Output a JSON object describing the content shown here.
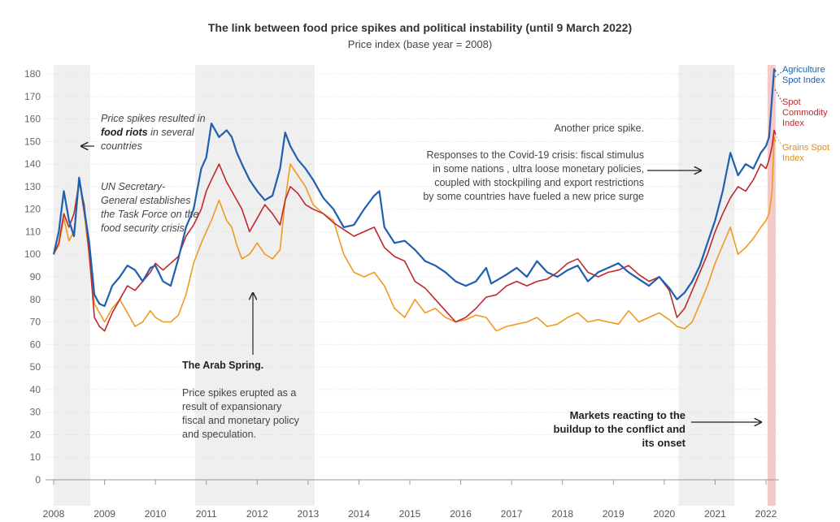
{
  "title": "The link between food price spikes and political instability (until 9 March 2022)",
  "subtitle": "Price index (base year = 2008)",
  "annotations": {
    "riots_pre": "Price spikes resulted in ",
    "riots_bold": "food riots",
    "riots_post": " in several countries",
    "un_task_force": "UN Secretary-General establishes the Task Force on the food security crisis",
    "arab_spring_title": "The Arab Spring.",
    "arab_spring_body": "Price spikes erupted as a result of expansionary fiscal and monetary policy  and speculation.",
    "another_spike": "Another price spike.",
    "covid": "Responses to the Covid-19 crisis:  fiscal stimulus in some nations , ultra loose monetary policies, coupled with stockpiling and export restrictions by some countries have fueled a new price surge",
    "conflict": "Markets reacting to the buildup to the conflict and its onset"
  },
  "colors": {
    "agriculture": "#1f5fb0",
    "commodity": "#c0282e",
    "grains": "#f09a1f",
    "shade": "#efefef",
    "conflict_shade": "#f3c9c9"
  },
  "chart_data": {
    "type": "line",
    "x_ticks": [
      "2008",
      "2009",
      "2010",
      "2011",
      "2012",
      "2013",
      "2014",
      "2015",
      "2016",
      "2017",
      "2018",
      "2019",
      "2020",
      "2021",
      "2022"
    ],
    "ylim": [
      0,
      180
    ],
    "y_ticks": [
      "0",
      "10",
      "20",
      "30",
      "40",
      "50",
      "60",
      "70",
      "80",
      "90",
      "100",
      "110",
      "120",
      "130",
      "140",
      "150",
      "160",
      "170",
      "180"
    ],
    "grid": true,
    "shaded_periods": [
      {
        "start": 2008.0,
        "end": 2008.72
      },
      {
        "start": 2010.78,
        "end": 2013.13
      },
      {
        "start": 2020.28,
        "end": 2021.38
      },
      {
        "start": 2022.03,
        "end": 2022.19,
        "kind": "conflict"
      }
    ],
    "series": [
      {
        "name": "Agriculture Spot Index",
        "color": "#1f5fb0",
        "points": [
          [
            2008.0,
            100
          ],
          [
            2008.1,
            110
          ],
          [
            2008.2,
            128
          ],
          [
            2008.3,
            115
          ],
          [
            2008.4,
            108
          ],
          [
            2008.5,
            134
          ],
          [
            2008.6,
            120
          ],
          [
            2008.7,
            105
          ],
          [
            2008.8,
            82
          ],
          [
            2008.9,
            78
          ],
          [
            2009.0,
            77
          ],
          [
            2009.15,
            86
          ],
          [
            2009.3,
            90
          ],
          [
            2009.45,
            95
          ],
          [
            2009.6,
            93
          ],
          [
            2009.75,
            88
          ],
          [
            2009.9,
            94
          ],
          [
            2010.0,
            95
          ],
          [
            2010.15,
            88
          ],
          [
            2010.3,
            86
          ],
          [
            2010.45,
            98
          ],
          [
            2010.6,
            112
          ],
          [
            2010.75,
            120
          ],
          [
            2010.9,
            138
          ],
          [
            2011.0,
            143
          ],
          [
            2011.1,
            158
          ],
          [
            2011.25,
            152
          ],
          [
            2011.4,
            155
          ],
          [
            2011.5,
            152
          ],
          [
            2011.6,
            145
          ],
          [
            2011.7,
            140
          ],
          [
            2011.85,
            133
          ],
          [
            2012.0,
            128
          ],
          [
            2012.15,
            124
          ],
          [
            2012.3,
            126
          ],
          [
            2012.45,
            138
          ],
          [
            2012.55,
            154
          ],
          [
            2012.65,
            148
          ],
          [
            2012.8,
            142
          ],
          [
            2012.95,
            138
          ],
          [
            2013.1,
            133
          ],
          [
            2013.3,
            125
          ],
          [
            2013.5,
            120
          ],
          [
            2013.7,
            112
          ],
          [
            2013.9,
            113
          ],
          [
            2014.1,
            120
          ],
          [
            2014.3,
            126
          ],
          [
            2014.4,
            128
          ],
          [
            2014.5,
            112
          ],
          [
            2014.7,
            105
          ],
          [
            2014.9,
            106
          ],
          [
            2015.1,
            102
          ],
          [
            2015.3,
            97
          ],
          [
            2015.5,
            95
          ],
          [
            2015.7,
            92
          ],
          [
            2015.9,
            88
          ],
          [
            2016.1,
            86
          ],
          [
            2016.3,
            88
          ],
          [
            2016.5,
            94
          ],
          [
            2016.6,
            87
          ],
          [
            2016.75,
            89
          ],
          [
            2016.9,
            91
          ],
          [
            2017.1,
            94
          ],
          [
            2017.3,
            90
          ],
          [
            2017.5,
            97
          ],
          [
            2017.7,
            92
          ],
          [
            2017.9,
            90
          ],
          [
            2018.1,
            93
          ],
          [
            2018.3,
            95
          ],
          [
            2018.5,
            88
          ],
          [
            2018.7,
            92
          ],
          [
            2018.9,
            94
          ],
          [
            2019.1,
            96
          ],
          [
            2019.3,
            92
          ],
          [
            2019.5,
            89
          ],
          [
            2019.7,
            86
          ],
          [
            2019.9,
            90
          ],
          [
            2020.1,
            85
          ],
          [
            2020.25,
            80
          ],
          [
            2020.4,
            83
          ],
          [
            2020.55,
            88
          ],
          [
            2020.7,
            95
          ],
          [
            2020.85,
            105
          ],
          [
            2021.0,
            115
          ],
          [
            2021.15,
            128
          ],
          [
            2021.3,
            145
          ],
          [
            2021.45,
            135
          ],
          [
            2021.6,
            140
          ],
          [
            2021.75,
            138
          ],
          [
            2021.9,
            145
          ],
          [
            2022.0,
            148
          ],
          [
            2022.06,
            152
          ],
          [
            2022.12,
            170
          ],
          [
            2022.16,
            182
          ],
          [
            2022.19,
            181
          ]
        ]
      },
      {
        "name": "Spot Commodity Index",
        "color": "#c0282e",
        "points": [
          [
            2008.0,
            100
          ],
          [
            2008.1,
            105
          ],
          [
            2008.2,
            118
          ],
          [
            2008.3,
            112
          ],
          [
            2008.4,
            118
          ],
          [
            2008.5,
            132
          ],
          [
            2008.6,
            122
          ],
          [
            2008.7,
            100
          ],
          [
            2008.8,
            72
          ],
          [
            2008.9,
            68
          ],
          [
            2009.0,
            66
          ],
          [
            2009.15,
            74
          ],
          [
            2009.3,
            80
          ],
          [
            2009.45,
            86
          ],
          [
            2009.6,
            84
          ],
          [
            2009.75,
            88
          ],
          [
            2009.9,
            92
          ],
          [
            2010.0,
            96
          ],
          [
            2010.15,
            93
          ],
          [
            2010.3,
            96
          ],
          [
            2010.45,
            99
          ],
          [
            2010.6,
            108
          ],
          [
            2010.75,
            113
          ],
          [
            2010.9,
            120
          ],
          [
            2011.0,
            128
          ],
          [
            2011.1,
            133
          ],
          [
            2011.25,
            140
          ],
          [
            2011.4,
            132
          ],
          [
            2011.5,
            128
          ],
          [
            2011.6,
            124
          ],
          [
            2011.7,
            120
          ],
          [
            2011.85,
            110
          ],
          [
            2012.0,
            116
          ],
          [
            2012.15,
            122
          ],
          [
            2012.3,
            118
          ],
          [
            2012.45,
            113
          ],
          [
            2012.55,
            124
          ],
          [
            2012.65,
            130
          ],
          [
            2012.8,
            127
          ],
          [
            2012.95,
            122
          ],
          [
            2013.1,
            120
          ],
          [
            2013.3,
            118
          ],
          [
            2013.5,
            114
          ],
          [
            2013.7,
            111
          ],
          [
            2013.9,
            108
          ],
          [
            2014.1,
            110
          ],
          [
            2014.3,
            112
          ],
          [
            2014.5,
            103
          ],
          [
            2014.7,
            99
          ],
          [
            2014.9,
            97
          ],
          [
            2015.1,
            88
          ],
          [
            2015.3,
            85
          ],
          [
            2015.5,
            80
          ],
          [
            2015.7,
            75
          ],
          [
            2015.9,
            70
          ],
          [
            2016.1,
            72
          ],
          [
            2016.3,
            76
          ],
          [
            2016.5,
            81
          ],
          [
            2016.7,
            82
          ],
          [
            2016.9,
            86
          ],
          [
            2017.1,
            88
          ],
          [
            2017.3,
            86
          ],
          [
            2017.5,
            88
          ],
          [
            2017.7,
            89
          ],
          [
            2017.9,
            92
          ],
          [
            2018.1,
            96
          ],
          [
            2018.3,
            98
          ],
          [
            2018.5,
            92
          ],
          [
            2018.7,
            90
          ],
          [
            2018.9,
            92
          ],
          [
            2019.1,
            93
          ],
          [
            2019.3,
            95
          ],
          [
            2019.5,
            91
          ],
          [
            2019.7,
            88
          ],
          [
            2019.9,
            90
          ],
          [
            2020.1,
            84
          ],
          [
            2020.25,
            72
          ],
          [
            2020.4,
            76
          ],
          [
            2020.55,
            84
          ],
          [
            2020.7,
            92
          ],
          [
            2020.85,
            100
          ],
          [
            2021.0,
            110
          ],
          [
            2021.15,
            118
          ],
          [
            2021.3,
            125
          ],
          [
            2021.45,
            130
          ],
          [
            2021.6,
            128
          ],
          [
            2021.75,
            133
          ],
          [
            2021.9,
            140
          ],
          [
            2022.0,
            138
          ],
          [
            2022.06,
            142
          ],
          [
            2022.12,
            148
          ],
          [
            2022.16,
            155
          ],
          [
            2022.19,
            153
          ]
        ]
      },
      {
        "name": "Grains Spot Index",
        "color": "#f09a1f",
        "points": [
          [
            2008.0,
            100
          ],
          [
            2008.1,
            104
          ],
          [
            2008.2,
            116
          ],
          [
            2008.3,
            106
          ],
          [
            2008.4,
            110
          ],
          [
            2008.5,
            133
          ],
          [
            2008.6,
            118
          ],
          [
            2008.7,
            99
          ],
          [
            2008.8,
            78
          ],
          [
            2008.9,
            74
          ],
          [
            2009.0,
            70
          ],
          [
            2009.15,
            76
          ],
          [
            2009.3,
            80
          ],
          [
            2009.45,
            74
          ],
          [
            2009.6,
            68
          ],
          [
            2009.75,
            70
          ],
          [
            2009.9,
            75
          ],
          [
            2010.0,
            72
          ],
          [
            2010.15,
            70
          ],
          [
            2010.3,
            70
          ],
          [
            2010.45,
            73
          ],
          [
            2010.6,
            82
          ],
          [
            2010.75,
            96
          ],
          [
            2010.9,
            105
          ],
          [
            2011.0,
            110
          ],
          [
            2011.1,
            115
          ],
          [
            2011.25,
            124
          ],
          [
            2011.4,
            115
          ],
          [
            2011.5,
            112
          ],
          [
            2011.6,
            104
          ],
          [
            2011.7,
            98
          ],
          [
            2011.85,
            100
          ],
          [
            2012.0,
            105
          ],
          [
            2012.15,
            100
          ],
          [
            2012.3,
            98
          ],
          [
            2012.45,
            102
          ],
          [
            2012.55,
            124
          ],
          [
            2012.65,
            140
          ],
          [
            2012.8,
            135
          ],
          [
            2012.95,
            130
          ],
          [
            2013.1,
            122
          ],
          [
            2013.3,
            118
          ],
          [
            2013.5,
            115
          ],
          [
            2013.7,
            100
          ],
          [
            2013.9,
            92
          ],
          [
            2014.1,
            90
          ],
          [
            2014.3,
            92
          ],
          [
            2014.5,
            86
          ],
          [
            2014.7,
            76
          ],
          [
            2014.9,
            72
          ],
          [
            2015.1,
            80
          ],
          [
            2015.3,
            74
          ],
          [
            2015.5,
            76
          ],
          [
            2015.7,
            72
          ],
          [
            2015.9,
            70
          ],
          [
            2016.1,
            71
          ],
          [
            2016.3,
            73
          ],
          [
            2016.5,
            72
          ],
          [
            2016.7,
            66
          ],
          [
            2016.9,
            68
          ],
          [
            2017.1,
            69
          ],
          [
            2017.3,
            70
          ],
          [
            2017.5,
            72
          ],
          [
            2017.7,
            68
          ],
          [
            2017.9,
            69
          ],
          [
            2018.1,
            72
          ],
          [
            2018.3,
            74
          ],
          [
            2018.5,
            70
          ],
          [
            2018.7,
            71
          ],
          [
            2018.9,
            70
          ],
          [
            2019.1,
            69
          ],
          [
            2019.3,
            75
          ],
          [
            2019.5,
            70
          ],
          [
            2019.7,
            72
          ],
          [
            2019.9,
            74
          ],
          [
            2020.1,
            71
          ],
          [
            2020.25,
            68
          ],
          [
            2020.4,
            67
          ],
          [
            2020.55,
            70
          ],
          [
            2020.7,
            78
          ],
          [
            2020.85,
            86
          ],
          [
            2021.0,
            96
          ],
          [
            2021.15,
            104
          ],
          [
            2021.3,
            112
          ],
          [
            2021.45,
            100
          ],
          [
            2021.6,
            103
          ],
          [
            2021.75,
            107
          ],
          [
            2021.9,
            112
          ],
          [
            2022.0,
            115
          ],
          [
            2022.06,
            118
          ],
          [
            2022.12,
            128
          ],
          [
            2022.16,
            152
          ],
          [
            2022.19,
            150
          ]
        ]
      }
    ]
  }
}
